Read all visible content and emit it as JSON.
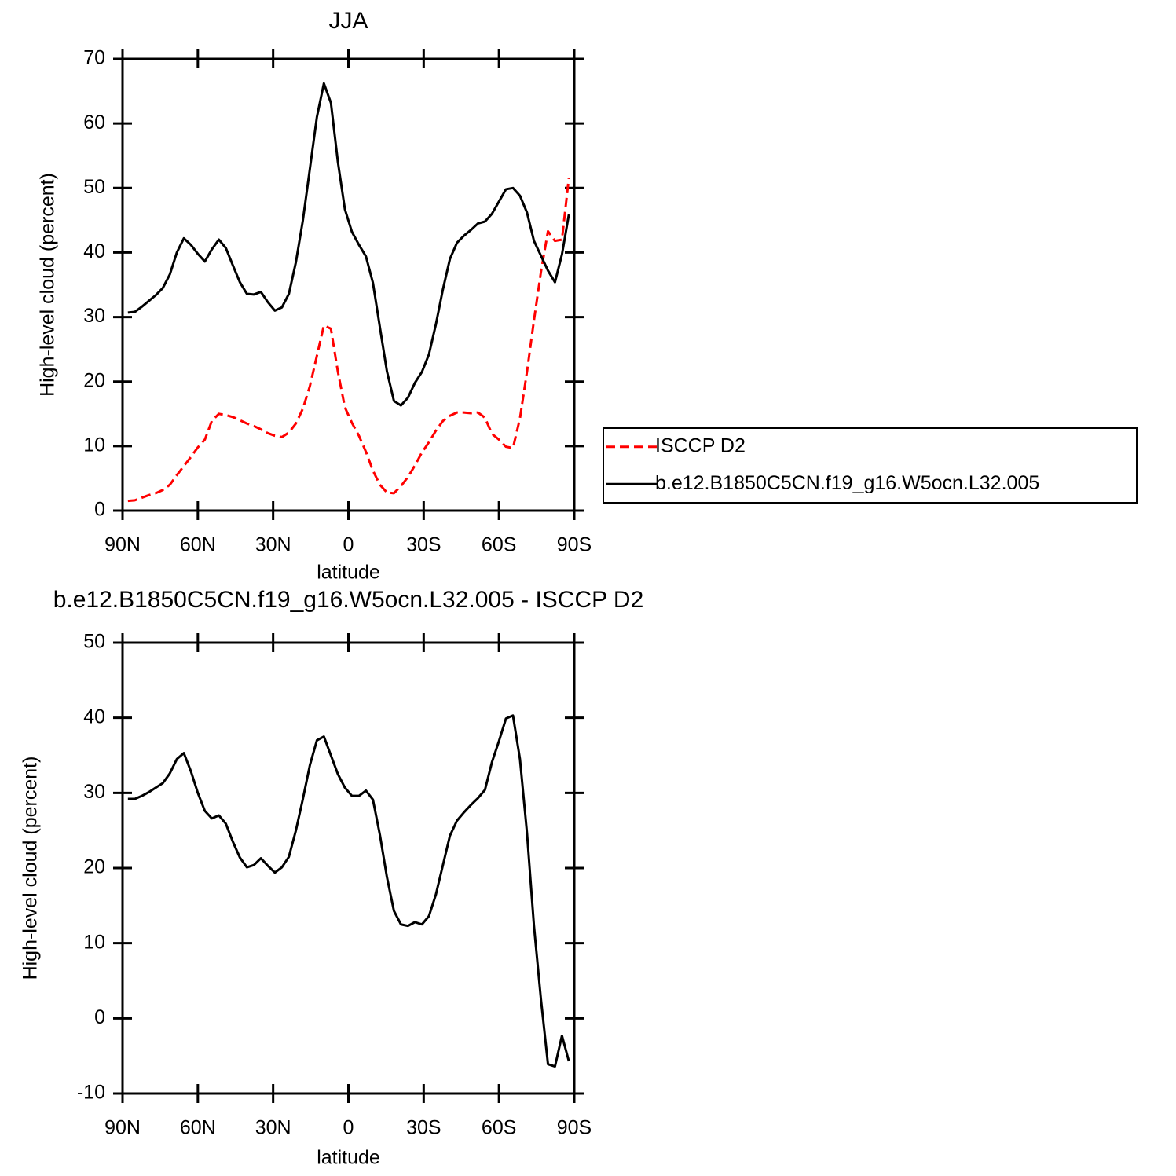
{
  "chart_data": [
    {
      "type": "line",
      "title": "JJA",
      "xlabel": "latitude",
      "ylabel": "High-level cloud (percent)",
      "x": [
        87.86,
        85.1,
        82.31,
        79.53,
        76.74,
        73.95,
        71.16,
        68.37,
        65.58,
        62.79,
        60.0,
        57.21,
        54.42,
        51.63,
        48.84,
        46.04,
        43.25,
        40.46,
        37.67,
        34.88,
        32.09,
        29.3,
        26.51,
        23.72,
        20.93,
        18.14,
        15.35,
        12.56,
        9.77,
        6.98,
        4.19,
        1.4,
        -1.4,
        -4.19,
        -6.98,
        -9.77,
        -12.56,
        -15.35,
        -18.14,
        -20.93,
        -23.72,
        -26.51,
        -29.3,
        -32.09,
        -34.88,
        -37.67,
        -40.46,
        -43.25,
        -46.04,
        -48.84,
        -51.63,
        -54.42,
        -57.21,
        -60.0,
        -62.79,
        -65.58,
        -68.37,
        -71.16,
        -73.95,
        -76.74,
        -79.53,
        -82.31,
        -85.1,
        -87.86
      ],
      "series": [
        {
          "name": "ISCCP D2",
          "color": "#ff0000",
          "style": "dashed",
          "values": [
            1.5,
            1.6,
            2.0,
            2.4,
            2.7,
            3.2,
            4.0,
            5.5,
            6.9,
            8.3,
            9.8,
            11.0,
            13.9,
            15.0,
            14.8,
            14.5,
            14.0,
            13.5,
            13.1,
            12.6,
            12.0,
            11.6,
            11.4,
            12.1,
            13.5,
            15.8,
            19.3,
            24.0,
            28.7,
            28.2,
            21.5,
            16.0,
            13.6,
            11.6,
            9.1,
            6.2,
            4.0,
            2.8,
            2.7,
            3.8,
            5.2,
            7.0,
            9.0,
            10.6,
            12.4,
            13.9,
            14.7,
            15.2,
            15.2,
            15.1,
            15.2,
            14.4,
            11.9,
            11.0,
            9.9,
            9.7,
            14.3,
            21.5,
            29.5,
            37.0,
            43.3,
            41.8,
            42.0,
            51.6
          ]
        },
        {
          "name": "b.e12.B1850C5CN.f19_g16.W5ocn.L32.005",
          "color": "#000000",
          "style": "solid",
          "values": [
            30.7,
            30.8,
            31.6,
            32.5,
            33.4,
            34.5,
            36.6,
            40.0,
            42.2,
            41.2,
            39.8,
            38.6,
            40.5,
            42.0,
            40.7,
            38.0,
            35.4,
            33.6,
            33.5,
            33.9,
            32.3,
            31.0,
            31.5,
            33.6,
            38.5,
            45.0,
            53.0,
            61.0,
            66.2,
            63.2,
            54.0,
            46.7,
            43.2,
            41.2,
            39.4,
            35.3,
            28.4,
            21.6,
            17.0,
            16.3,
            17.5,
            19.8,
            21.5,
            24.2,
            28.9,
            34.3,
            39.0,
            41.5,
            42.6,
            43.5,
            44.5,
            44.8,
            46.0,
            47.9,
            49.8,
            50.0,
            48.8,
            46.2,
            41.8,
            39.5,
            37.2,
            35.4,
            39.7,
            45.9
          ]
        }
      ],
      "xlim": [
        90,
        -90
      ],
      "xticks": [
        {
          "value": 90,
          "label": "90N"
        },
        {
          "value": 60,
          "label": "60N"
        },
        {
          "value": 30,
          "label": "30N"
        },
        0,
        {
          "value": -30,
          "label": "30S"
        },
        {
          "value": -60,
          "label": "60S"
        },
        {
          "value": -90,
          "label": "90S"
        }
      ],
      "ylim": [
        0,
        70
      ],
      "yticks": [
        0,
        10,
        20,
        30,
        40,
        50,
        60,
        70
      ],
      "legend": "right"
    },
    {
      "type": "line",
      "title": "b.e12.B1850C5CN.f19_g16.W5ocn.L32.005 - ISCCP D2",
      "xlabel": "latitude",
      "ylabel": "High-level cloud (percent)",
      "x": [
        87.86,
        85.1,
        82.31,
        79.53,
        76.74,
        73.95,
        71.16,
        68.37,
        65.58,
        62.79,
        60.0,
        57.21,
        54.42,
        51.63,
        48.84,
        46.04,
        43.25,
        40.46,
        37.67,
        34.88,
        32.09,
        29.3,
        26.51,
        23.72,
        20.93,
        18.14,
        15.35,
        12.56,
        9.77,
        6.98,
        4.19,
        1.4,
        -1.4,
        -4.19,
        -6.98,
        -9.77,
        -12.56,
        -15.35,
        -18.14,
        -20.93,
        -23.72,
        -26.51,
        -29.3,
        -32.09,
        -34.88,
        -37.67,
        -40.46,
        -43.25,
        -46.04,
        -48.84,
        -51.63,
        -54.42,
        -57.21,
        -60.0,
        -62.79,
        -65.58,
        -68.37,
        -71.16,
        -73.95,
        -76.74,
        -79.53,
        -82.31,
        -85.1,
        -87.86
      ],
      "series": [
        {
          "color": "#000000",
          "style": "solid",
          "values": [
            29.2,
            29.2,
            29.6,
            30.1,
            30.7,
            31.3,
            32.6,
            34.5,
            35.3,
            32.9,
            30.0,
            27.6,
            26.6,
            27.0,
            25.9,
            23.5,
            21.4,
            20.1,
            20.4,
            21.3,
            20.3,
            19.4,
            20.1,
            21.5,
            25.0,
            29.2,
            33.7,
            37.0,
            37.5,
            35.0,
            32.5,
            30.7,
            29.6,
            29.6,
            30.3,
            29.1,
            24.4,
            18.8,
            14.3,
            12.5,
            12.3,
            12.8,
            12.5,
            13.6,
            16.5,
            20.4,
            24.3,
            26.3,
            27.4,
            28.4,
            29.3,
            30.4,
            34.1,
            36.9,
            39.9,
            40.3,
            34.5,
            24.7,
            12.3,
            2.5,
            -6.1,
            -6.4,
            -2.3,
            -5.7
          ]
        }
      ],
      "xlim": [
        90,
        -90
      ],
      "xticks": [
        {
          "value": 90,
          "label": "90N"
        },
        {
          "value": 60,
          "label": "60N"
        },
        {
          "value": 30,
          "label": "30N"
        },
        0,
        {
          "value": -30,
          "label": "30S"
        },
        {
          "value": -60,
          "label": "60S"
        },
        {
          "value": -90,
          "label": "90S"
        }
      ],
      "ylim": [
        -10,
        50
      ],
      "yticks": [
        -10,
        0,
        10,
        20,
        30,
        40,
        50
      ]
    }
  ]
}
